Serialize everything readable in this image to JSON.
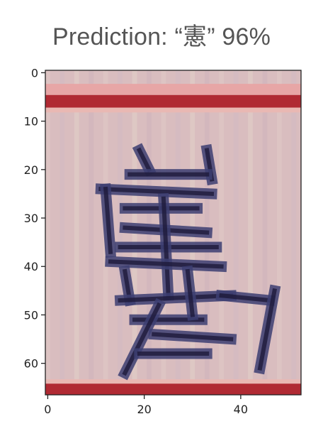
{
  "title": "Prediction: “憲” 96%",
  "chart_data": {
    "type": "heatmap",
    "title": "Prediction: “憲” 96%",
    "prediction": {
      "character": "憲",
      "confidence_percent": 96
    },
    "image_size": {
      "rows": 67,
      "cols": 53
    },
    "xlim": [
      -0.5,
      52.5
    ],
    "ylim": [
      66.5,
      -0.5
    ],
    "x_ticks": [
      0,
      20,
      40
    ],
    "y_ticks": [
      0,
      10,
      20,
      30,
      40,
      50,
      60
    ],
    "xlabel": "",
    "ylabel": "",
    "grid": false,
    "colors": {
      "background": "#d9bdbf",
      "border_band": "#b02a33",
      "border_band_light": "#e7a6a6",
      "ink": "#3d3f72",
      "ink_dark": "#1e1a3a",
      "axes": "#222222"
    }
  }
}
